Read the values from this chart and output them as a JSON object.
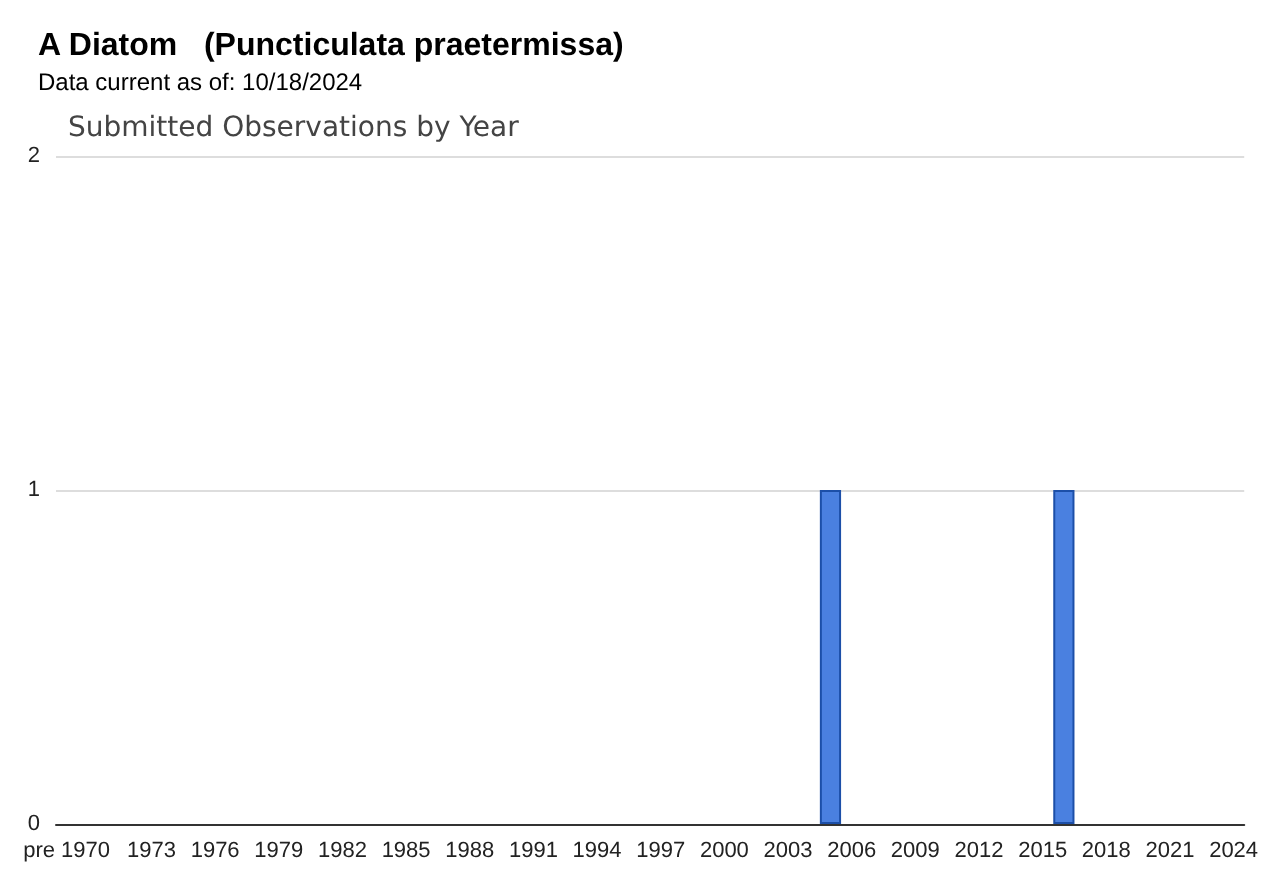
{
  "chart_data": {
    "type": "bar",
    "title": "A Diatom   (Puncticulata praetermissa)",
    "subtitle": "Data current as of: 10/18/2024",
    "annotations": [
      "Submitted Observations by Year"
    ],
    "categories": [
      "pre 1970",
      null,
      null,
      null,
      "1973",
      null,
      null,
      "1976",
      null,
      null,
      "1979",
      null,
      null,
      "1982",
      null,
      null,
      "1985",
      null,
      null,
      "1988",
      null,
      null,
      "1991",
      null,
      null,
      "1994",
      null,
      null,
      "1997",
      null,
      null,
      "2000",
      null,
      null,
      "2003",
      null,
      null,
      "2006",
      null,
      null,
      "2009",
      null,
      null,
      "2012",
      null,
      null,
      "2015",
      null,
      null,
      "2018",
      null,
      null,
      "2021",
      null,
      null,
      "2024"
    ],
    "values": [
      0,
      0,
      0,
      0,
      0,
      0,
      0,
      0,
      0,
      0,
      0,
      0,
      0,
      0,
      0,
      0,
      0,
      0,
      0,
      0,
      0,
      0,
      0,
      0,
      0,
      0,
      0,
      0,
      0,
      0,
      0,
      0,
      0,
      0,
      0,
      0,
      1,
      0,
      0,
      0,
      0,
      0,
      0,
      0,
      0,
      0,
      0,
      1,
      0,
      0,
      0,
      0,
      0,
      0,
      0,
      0
    ],
    "color": "#4a80e0",
    "ylim": [
      0,
      2
    ],
    "yticks": [
      0,
      1,
      2
    ],
    "grid": "y"
  }
}
